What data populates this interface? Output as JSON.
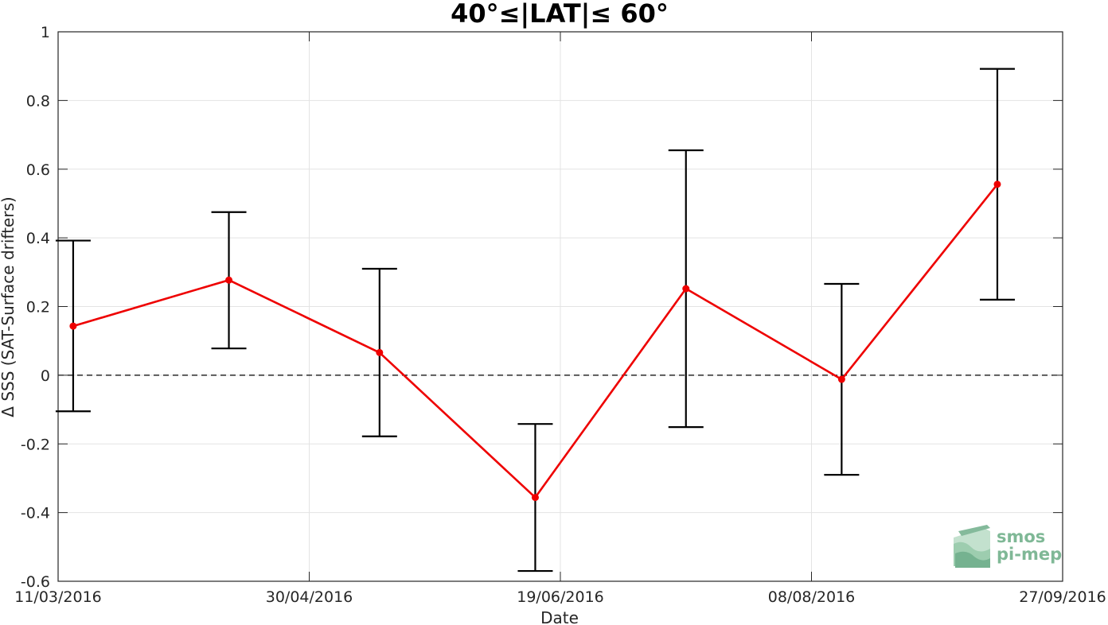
{
  "chart_data": {
    "type": "line",
    "title": "40°≤|LAT|≤ 60°",
    "xlabel": "Date",
    "ylabel": "Δ SSS (SAT-Surface drifters)",
    "x_ticks": [
      "11/03/2016",
      "30/04/2016",
      "19/06/2016",
      "08/08/2016",
      "27/09/2016"
    ],
    "xlim": [
      "2016-03-11",
      "2016-09-27"
    ],
    "y_ticks": [
      "1",
      "0.8",
      "0.6",
      "0.4",
      "0.2",
      "0",
      "-0.2",
      "-0.4",
      "-0.6"
    ],
    "ylim": [
      -0.6,
      1
    ],
    "grid": true,
    "zero_line": {
      "value": 0,
      "style": "dashed",
      "color": "#000000"
    },
    "series": [
      {
        "color": "#ee0000",
        "points": [
          {
            "x": "2016-03-14",
            "y": 0.143,
            "err_low": -0.105,
            "err_high": 0.392
          },
          {
            "x": "2016-04-14",
            "y": 0.277,
            "err_low": 0.078,
            "err_high": 0.475
          },
          {
            "x": "2016-05-14",
            "y": 0.066,
            "err_low": -0.178,
            "err_high": 0.31
          },
          {
            "x": "2016-06-14",
            "y": -0.356,
            "err_low": -0.57,
            "err_high": -0.142
          },
          {
            "x": "2016-07-14",
            "y": 0.252,
            "err_low": -0.151,
            "err_high": 0.655
          },
          {
            "x": "2016-08-14",
            "y": -0.012,
            "err_low": -0.29,
            "err_high": 0.266
          },
          {
            "x": "2016-09-14",
            "y": 0.556,
            "err_low": 0.22,
            "err_high": 0.892
          }
        ]
      }
    ]
  },
  "logo": {
    "line1": "smos",
    "line2": "pi-mep",
    "color": "#7fb896",
    "icon": "smos-pi-mep-logo-icon"
  }
}
